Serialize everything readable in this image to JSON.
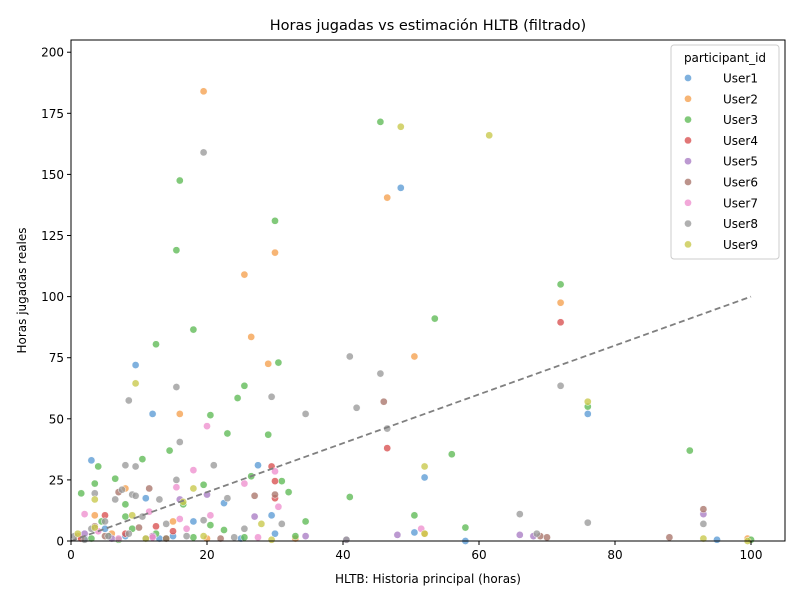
{
  "chart_data": {
    "type": "scatter",
    "title": "Horas jugadas vs estimación HLTB (filtrado)",
    "xlabel": "HLTB: Historia principal (horas)",
    "ylabel": "Horas jugadas reales",
    "xlim": [
      0,
      105
    ],
    "ylim": [
      0,
      205
    ],
    "xticks": [
      0,
      20,
      40,
      60,
      80,
      100
    ],
    "yticks": [
      0,
      25,
      50,
      75,
      100,
      125,
      150,
      175,
      200
    ],
    "grid": false,
    "legend": {
      "title": "participant_id",
      "placement": "top-right"
    },
    "reference_line": {
      "style": "dashed",
      "color": "#808080",
      "x": [
        0,
        100
      ],
      "y": [
        0,
        100
      ]
    },
    "series": [
      {
        "name": "User1",
        "color": "#5b9bd5",
        "points": [
          [
            9.5,
            72
          ],
          [
            12,
            52
          ],
          [
            48.5,
            144.5
          ],
          [
            76,
            52
          ],
          [
            27.5,
            31
          ],
          [
            3,
            33
          ],
          [
            11,
            17.5
          ],
          [
            22.5,
            15.5
          ],
          [
            29.5,
            10.5
          ],
          [
            5,
            5
          ],
          [
            8,
            2
          ],
          [
            15,
            2
          ],
          [
            30,
            3
          ],
          [
            50.5,
            3.5
          ],
          [
            52,
            26
          ],
          [
            18,
            8
          ],
          [
            58,
            0
          ],
          [
            95,
            0.5
          ],
          [
            25,
            1
          ],
          [
            2,
            1
          ],
          [
            13,
            1
          ]
        ]
      },
      {
        "name": "User2",
        "color": "#f5a04e",
        "points": [
          [
            19.5,
            184
          ],
          [
            46.5,
            140.5
          ],
          [
            30,
            118
          ],
          [
            25.5,
            109
          ],
          [
            72,
            97.5
          ],
          [
            26.5,
            83.5
          ],
          [
            29,
            72.5
          ],
          [
            50.5,
            75.5
          ],
          [
            16,
            52
          ],
          [
            8,
            21.5
          ],
          [
            3.5,
            10.5
          ],
          [
            6,
            3
          ],
          [
            12,
            2
          ],
          [
            1,
            2
          ],
          [
            20,
            1
          ],
          [
            33,
            1
          ],
          [
            52,
            3
          ],
          [
            99.5,
            1
          ],
          [
            15,
            8
          ]
        ]
      },
      {
        "name": "User3",
        "color": "#5dba55",
        "points": [
          [
            45.5,
            171.5
          ],
          [
            16,
            147.5
          ],
          [
            15.5,
            119
          ],
          [
            30,
            131
          ],
          [
            18,
            86.5
          ],
          [
            12.5,
            80.5
          ],
          [
            30.5,
            73
          ],
          [
            53.5,
            91
          ],
          [
            72,
            105
          ],
          [
            25.5,
            63.5
          ],
          [
            24.5,
            58.5
          ],
          [
            20.5,
            51.5
          ],
          [
            76,
            55
          ],
          [
            23,
            44
          ],
          [
            29,
            43.5
          ],
          [
            56,
            35.5
          ],
          [
            91,
            37
          ],
          [
            10.5,
            33.5
          ],
          [
            14.5,
            37
          ],
          [
            4,
            30.5
          ],
          [
            1.5,
            19.5
          ],
          [
            3.5,
            23.5
          ],
          [
            6.5,
            25.5
          ],
          [
            8,
            15
          ],
          [
            16.5,
            15
          ],
          [
            19.5,
            23
          ],
          [
            26.5,
            26.5
          ],
          [
            32,
            20
          ],
          [
            31,
            24.5
          ],
          [
            41,
            18
          ],
          [
            50.5,
            10.5
          ],
          [
            34.5,
            8
          ],
          [
            58,
            5.5
          ],
          [
            20.5,
            6.5
          ],
          [
            22.5,
            4.5
          ],
          [
            25.5,
            1.5
          ],
          [
            8,
            10
          ],
          [
            9,
            5
          ],
          [
            12.5,
            3
          ],
          [
            3,
            1
          ],
          [
            4.5,
            8
          ],
          [
            5.5,
            2
          ],
          [
            7,
            0.5
          ],
          [
            14,
            1
          ],
          [
            100,
            0.5
          ],
          [
            33,
            2
          ],
          [
            18,
            1.5
          ]
        ]
      },
      {
        "name": "User4",
        "color": "#d94f4f",
        "points": [
          [
            72,
            89.5
          ],
          [
            46.5,
            38
          ],
          [
            29.5,
            30.5
          ],
          [
            30,
            24.5
          ],
          [
            30,
            17.5
          ],
          [
            5,
            10.5
          ],
          [
            12.5,
            6
          ],
          [
            1.5,
            1
          ],
          [
            8,
            3
          ],
          [
            15,
            4
          ]
        ]
      },
      {
        "name": "User5",
        "color": "#a97cc4",
        "points": [
          [
            93,
            11
          ],
          [
            27,
            10
          ],
          [
            48,
            2.5
          ],
          [
            66,
            2.5
          ],
          [
            68,
            2
          ],
          [
            40.5,
            0.5
          ],
          [
            34.5,
            2
          ],
          [
            2,
            3
          ],
          [
            6,
            1
          ],
          [
            12,
            2
          ],
          [
            16,
            17
          ],
          [
            20,
            19
          ]
        ]
      },
      {
        "name": "User6",
        "color": "#a9756a",
        "points": [
          [
            46,
            57
          ],
          [
            93,
            13
          ],
          [
            30,
            19
          ],
          [
            27,
            18.5
          ],
          [
            88,
            1.5
          ],
          [
            70,
            1.5
          ],
          [
            69,
            2
          ],
          [
            11.5,
            21.5
          ],
          [
            7,
            20
          ],
          [
            3.5,
            6
          ],
          [
            10,
            5.5
          ],
          [
            14,
            1
          ],
          [
            22,
            1
          ],
          [
            5,
            2
          ]
        ]
      },
      {
        "name": "User7",
        "color": "#ee8fce",
        "points": [
          [
            20,
            47
          ],
          [
            18,
            29
          ],
          [
            25.5,
            23.5
          ],
          [
            15.5,
            22
          ],
          [
            30,
            28.5
          ],
          [
            20.5,
            10.5
          ],
          [
            30.5,
            14
          ],
          [
            16,
            9
          ],
          [
            2,
            11
          ],
          [
            51.5,
            5
          ],
          [
            27.5,
            1.5
          ],
          [
            11.5,
            12
          ],
          [
            7,
            1
          ],
          [
            12,
            1.5
          ],
          [
            4,
            4
          ],
          [
            17,
            5
          ]
        ]
      },
      {
        "name": "User8",
        "color": "#9a9a9a",
        "points": [
          [
            19.5,
            159
          ],
          [
            15.5,
            63
          ],
          [
            41,
            75.5
          ],
          [
            45.5,
            68.5
          ],
          [
            29.5,
            59
          ],
          [
            72,
            63.5
          ],
          [
            8.5,
            57.5
          ],
          [
            42,
            54.5
          ],
          [
            34.5,
            52
          ],
          [
            46.5,
            46
          ],
          [
            16,
            40.5
          ],
          [
            21,
            31
          ],
          [
            9.5,
            30.5
          ],
          [
            8,
            31
          ],
          [
            15.5,
            25
          ],
          [
            23,
            17.5
          ],
          [
            7.5,
            21
          ],
          [
            9,
            19
          ],
          [
            3.5,
            19.5
          ],
          [
            13,
            17
          ],
          [
            66,
            11
          ],
          [
            76,
            7.5
          ],
          [
            93,
            7
          ],
          [
            31,
            7
          ],
          [
            19.5,
            8.5
          ],
          [
            5,
            8
          ],
          [
            6.5,
            17
          ],
          [
            10.5,
            10
          ],
          [
            9.5,
            18.5
          ],
          [
            68.5,
            3
          ],
          [
            25.5,
            5
          ],
          [
            5.5,
            2
          ],
          [
            11,
            1
          ],
          [
            2,
            0.5
          ],
          [
            0.5,
            2
          ],
          [
            17,
            2
          ],
          [
            24,
            1.5
          ],
          [
            40.5,
            0.5
          ],
          [
            8.5,
            3
          ],
          [
            3,
            5
          ],
          [
            14,
            7
          ]
        ]
      },
      {
        "name": "User9",
        "color": "#c8c84a",
        "points": [
          [
            48.5,
            169.5
          ],
          [
            61.5,
            166
          ],
          [
            9.5,
            64.5
          ],
          [
            76,
            57
          ],
          [
            52,
            30.5
          ],
          [
            16.5,
            16
          ],
          [
            18,
            21.5
          ],
          [
            3.5,
            17
          ],
          [
            28,
            7
          ],
          [
            3.5,
            5.5
          ],
          [
            9,
            10.5
          ],
          [
            19.5,
            2
          ],
          [
            52,
            3
          ],
          [
            93,
            1
          ],
          [
            99.5,
            0
          ],
          [
            1,
            3
          ],
          [
            11,
            1
          ],
          [
            29.5,
            0.5
          ]
        ]
      }
    ]
  }
}
